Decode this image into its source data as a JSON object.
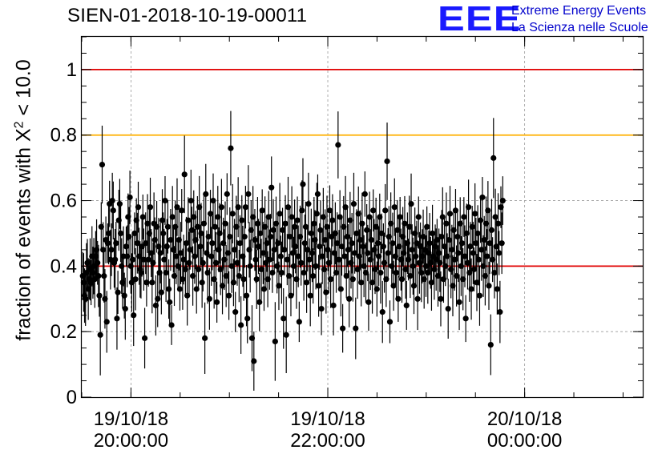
{
  "header": {
    "title": "SIEN-01-2018-10-19-00011",
    "logo_mark": "EEE",
    "logo_line1": "Extreme Energy Events",
    "logo_line2": "La Scienza nelle Scuole"
  },
  "chart_data": {
    "type": "scatter",
    "title": "SIEN-01-2018-10-19-00011",
    "xlabel": "",
    "ylabel_prefix": "fraction of events with X",
    "ylabel_sup": "2",
    "ylabel_suffix": " < 10.0",
    "ylim": [
      0,
      1.1
    ],
    "x_unit": "hours since 19/10/18 00:00",
    "xlim": [
      19.5,
      25.2
    ],
    "grid": true,
    "yticks": [
      {
        "value": 0,
        "label": "0"
      },
      {
        "value": 0.2,
        "label": "0.2"
      },
      {
        "value": 0.4,
        "label": "0.4"
      },
      {
        "value": 0.6,
        "label": "0.6"
      },
      {
        "value": 0.8,
        "label": "0.8"
      },
      {
        "value": 1.0,
        "label": "1"
      }
    ],
    "yminor_step": 0.05,
    "xticks": [
      {
        "value": 20,
        "date": "19/10/18",
        "time": "20:00:00"
      },
      {
        "value": 22,
        "date": "19/10/18",
        "time": "22:00:00"
      },
      {
        "value": 24,
        "date": "20/10/18",
        "time": "00:00:00"
      }
    ],
    "xminor_step": 0.5,
    "reference_lines": [
      {
        "value": 1.0,
        "color": "#e00000"
      },
      {
        "value": 0.8,
        "color": "#ffb000"
      },
      {
        "value": 0.4,
        "color": "#e00000"
      }
    ],
    "series": [
      {
        "name": "fraction",
        "x_start": 19.51,
        "x_step": 0.0094,
        "values": [
          0.37,
          0.35,
          0.31,
          0.3,
          0.38,
          0.41,
          0.33,
          0.36,
          0.39,
          0.35,
          0.43,
          0.38,
          0.4,
          0.36,
          0.43,
          0.45,
          0.41,
          0.37,
          0.31,
          0.19,
          0.52,
          0.71,
          0.45,
          0.37,
          0.3,
          0.48,
          0.23,
          0.47,
          0.5,
          0.59,
          0.42,
          0.45,
          0.6,
          0.57,
          0.41,
          0.42,
          0.47,
          0.24,
          0.32,
          0.54,
          0.59,
          0.5,
          0.4,
          0.35,
          0.43,
          0.31,
          0.27,
          0.46,
          0.43,
          0.55,
          0.49,
          0.61,
          0.4,
          0.35,
          0.42,
          0.25,
          0.5,
          0.36,
          0.54,
          0.47,
          0.58,
          0.43,
          0.39,
          0.38,
          0.46,
          0.55,
          0.42,
          0.18,
          0.47,
          0.35,
          0.53,
          0.42,
          0.5,
          0.58,
          0.44,
          0.35,
          0.41,
          0.53,
          0.48,
          0.28,
          0.52,
          0.3,
          0.46,
          0.38,
          0.44,
          0.32,
          0.54,
          0.5,
          0.42,
          0.6,
          0.38,
          0.46,
          0.52,
          0.33,
          0.29,
          0.48,
          0.22,
          0.55,
          0.45,
          0.37,
          0.52,
          0.43,
          0.58,
          0.4,
          0.48,
          0.33,
          0.44,
          0.57,
          0.36,
          0.42,
          0.68,
          0.39,
          0.47,
          0.31,
          0.54,
          0.41,
          0.45,
          0.6,
          0.51,
          0.37,
          0.55,
          0.43,
          0.48,
          0.33,
          0.52,
          0.39,
          0.58,
          0.46,
          0.5,
          0.35,
          0.41,
          0.53,
          0.18,
          0.62,
          0.44,
          0.38,
          0.49,
          0.3,
          0.56,
          0.43,
          0.47,
          0.6,
          0.36,
          0.52,
          0.41,
          0.29,
          0.55,
          0.45,
          0.5,
          0.39,
          0.58,
          0.34,
          0.47,
          0.42,
          0.53,
          0.37,
          0.62,
          0.44,
          0.31,
          0.49,
          0.76,
          0.4,
          0.56,
          0.35,
          0.45,
          0.26,
          0.52,
          0.41,
          0.58,
          0.37,
          0.47,
          0.22,
          0.54,
          0.43,
          0.36,
          0.49,
          0.58,
          0.31,
          0.24,
          0.62,
          0.45,
          0.4,
          0.51,
          0.18,
          0.55,
          0.11,
          0.48,
          0.42,
          0.36,
          0.53,
          0.46,
          0.29,
          0.5,
          0.39,
          0.57,
          0.44,
          0.33,
          0.52,
          0.41,
          0.47,
          0.36,
          0.55,
          0.42,
          0.49,
          0.64,
          0.38,
          0.51,
          0.45,
          0.17,
          0.53,
          0.4,
          0.47,
          0.34,
          0.56,
          0.43,
          0.38,
          0.51,
          0.24,
          0.45,
          0.53,
          0.19,
          0.42,
          0.58,
          0.37,
          0.49,
          0.31,
          0.55,
          0.44,
          0.4,
          0.52,
          0.46,
          0.36,
          0.54,
          0.43,
          0.23,
          0.49,
          0.41,
          0.57,
          0.65,
          0.38,
          0.47,
          0.52,
          0.35,
          0.45,
          0.59,
          0.42,
          0.31,
          0.5,
          0.44,
          0.37,
          0.53,
          0.48,
          0.4,
          0.56,
          0.62,
          0.34,
          0.46,
          0.51,
          0.27,
          0.43,
          0.55,
          0.39,
          0.48,
          0.32,
          0.52,
          0.45,
          0.41,
          0.57,
          0.36,
          0.49,
          0.54,
          0.28,
          0.44,
          0.5,
          0.38,
          0.47,
          0.77,
          0.42,
          0.55,
          0.33,
          0.46,
          0.21,
          0.52,
          0.43,
          0.58,
          0.37,
          0.49,
          0.45,
          0.3,
          0.54,
          0.41,
          0.47,
          0.36,
          0.59,
          0.44,
          0.21,
          0.5,
          0.39,
          0.56,
          0.43,
          0.48,
          0.35,
          0.53,
          0.46,
          0.4,
          0.62,
          0.38,
          0.51,
          0.44,
          0.29,
          0.55,
          0.42,
          0.48,
          0.35,
          0.57,
          0.45,
          0.39,
          0.52,
          0.33,
          0.47,
          0.43,
          0.55,
          0.38,
          0.5,
          0.26,
          0.46,
          0.41,
          0.57,
          0.36,
          0.72,
          0.44,
          0.49,
          0.23,
          0.53,
          0.4,
          0.47,
          0.34,
          0.58,
          0.43,
          0.38,
          0.51,
          0.3,
          0.46,
          0.55,
          0.42,
          0.36,
          0.49,
          0.44,
          0.53,
          0.39,
          0.28,
          0.47,
          0.42,
          0.52,
          0.37,
          0.59,
          0.45,
          0.4,
          0.34,
          0.5,
          0.43,
          0.47,
          0.3,
          0.55,
          0.41,
          0.46,
          0.38,
          0.43,
          0.49,
          0.36,
          0.45,
          0.4,
          0.52,
          0.38,
          0.44,
          0.47,
          0.41,
          0.35,
          0.5,
          0.43,
          0.39,
          0.46,
          0.42,
          0.48,
          0.37,
          0.44,
          0.41,
          0.3,
          0.49,
          0.55,
          0.36,
          0.46,
          0.4,
          0.53,
          0.43,
          0.27,
          0.48,
          0.56,
          0.39,
          0.45,
          0.34,
          0.51,
          0.42,
          0.57,
          0.37,
          0.49,
          0.44,
          0.29,
          0.53,
          0.4,
          0.47,
          0.36,
          0.55,
          0.43,
          0.24,
          0.5,
          0.41,
          0.58,
          0.38,
          0.46,
          0.33,
          0.52,
          0.44,
          0.39,
          0.56,
          0.47,
          0.35,
          0.5,
          0.42,
          0.31,
          0.54,
          0.45,
          0.61,
          0.4,
          0.48,
          0.37,
          0.53,
          0.43,
          0.57,
          0.34,
          0.47,
          0.16,
          0.51,
          0.42,
          0.73,
          0.38,
          0.55,
          0.46,
          0.33,
          0.53,
          0.44,
          0.26,
          0.58,
          0.47,
          0.6
        ]
      }
    ]
  }
}
